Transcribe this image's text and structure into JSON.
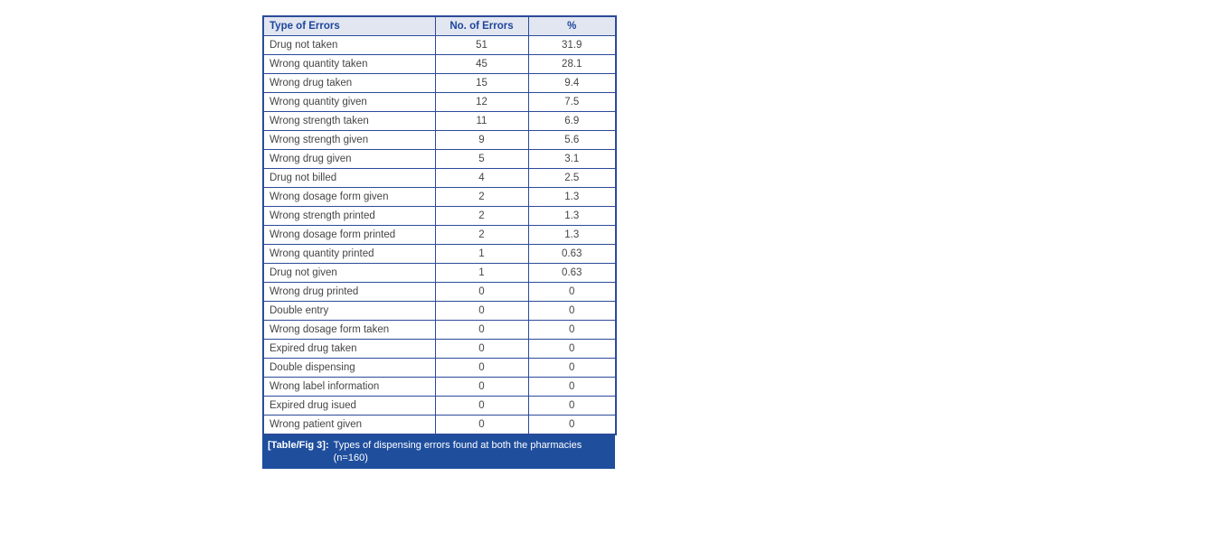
{
  "colors": {
    "border_navy": "#2b4a99",
    "header_bg": "#e1e6f1",
    "header_text": "#1f459b",
    "data_text": "#454545",
    "caption_bg": "#1f4e9d",
    "caption_text": "#ffffff",
    "page_bg": "#ffffff"
  },
  "table": {
    "columns": [
      "Type of Errors",
      "No. of Errors",
      "%"
    ],
    "rows": [
      {
        "type": "Drug not taken",
        "count": "51",
        "percent": "31.9"
      },
      {
        "type": "Wrong quantity taken",
        "count": "45",
        "percent": "28.1"
      },
      {
        "type": "Wrong drug taken",
        "count": "15",
        "percent": "9.4"
      },
      {
        "type": "Wrong quantity given",
        "count": "12",
        "percent": "7.5"
      },
      {
        "type": "Wrong strength taken",
        "count": "11",
        "percent": "6.9"
      },
      {
        "type": "Wrong strength given",
        "count": "9",
        "percent": "5.6"
      },
      {
        "type": "Wrong drug given",
        "count": "5",
        "percent": "3.1"
      },
      {
        "type": "Drug not billed",
        "count": "4",
        "percent": "2.5"
      },
      {
        "type": "Wrong dosage form given",
        "count": "2",
        "percent": "1.3"
      },
      {
        "type": "Wrong strength printed",
        "count": "2",
        "percent": "1.3"
      },
      {
        "type": "Wrong dosage form printed",
        "count": "2",
        "percent": "1.3"
      },
      {
        "type": "Wrong quantity printed",
        "count": "1",
        "percent": "0.63"
      },
      {
        "type": "Drug not given",
        "count": "1",
        "percent": "0.63"
      },
      {
        "type": "Wrong drug printed",
        "count": "0",
        "percent": "0"
      },
      {
        "type": "Double entry",
        "count": "0",
        "percent": "0"
      },
      {
        "type": "Wrong dosage form taken",
        "count": "0",
        "percent": "0"
      },
      {
        "type": "Expired drug taken",
        "count": "0",
        "percent": "0"
      },
      {
        "type": "Double dispensing",
        "count": "0",
        "percent": "0"
      },
      {
        "type": "Wrong label information",
        "count": "0",
        "percent": "0"
      },
      {
        "type": "Expired drug isued",
        "count": "0",
        "percent": "0"
      },
      {
        "type": "Wrong patient given",
        "count": "0",
        "percent": "0"
      }
    ],
    "caption": {
      "label": "[Table/Fig 3]:",
      "text": "Types of dispensing errors found at both the pharmacies",
      "note": "(n=160)"
    }
  }
}
